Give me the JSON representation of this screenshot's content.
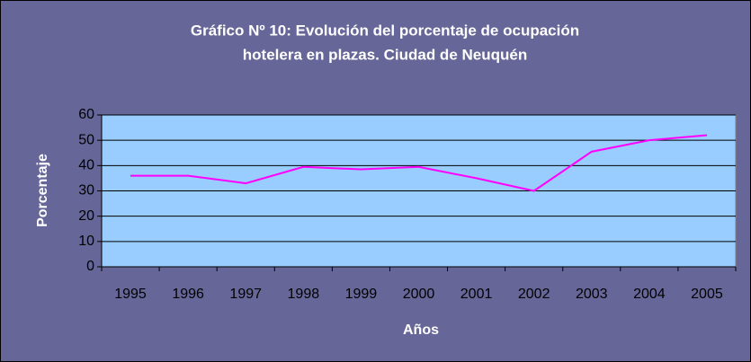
{
  "chart_data": {
    "type": "line",
    "title": [
      "Gráfico Nº 10: Evolución del porcentaje de ocupación",
      "hotelera en plazas. Ciudad de Neuquén"
    ],
    "x_label": "Años",
    "y_label": "Porcentaje",
    "categories": [
      "1995",
      "1996",
      "1997",
      "1998",
      "1999",
      "2000",
      "2001",
      "2002",
      "2003",
      "2004",
      "2005"
    ],
    "values": [
      36,
      36,
      33,
      39.5,
      38.5,
      39.5,
      35,
      30,
      45.5,
      50,
      52
    ],
    "color": "#ff00ff",
    "ylim": [
      0,
      60
    ],
    "yticks": [
      0,
      10,
      20,
      30,
      40,
      50,
      60
    ],
    "grid": true
  }
}
